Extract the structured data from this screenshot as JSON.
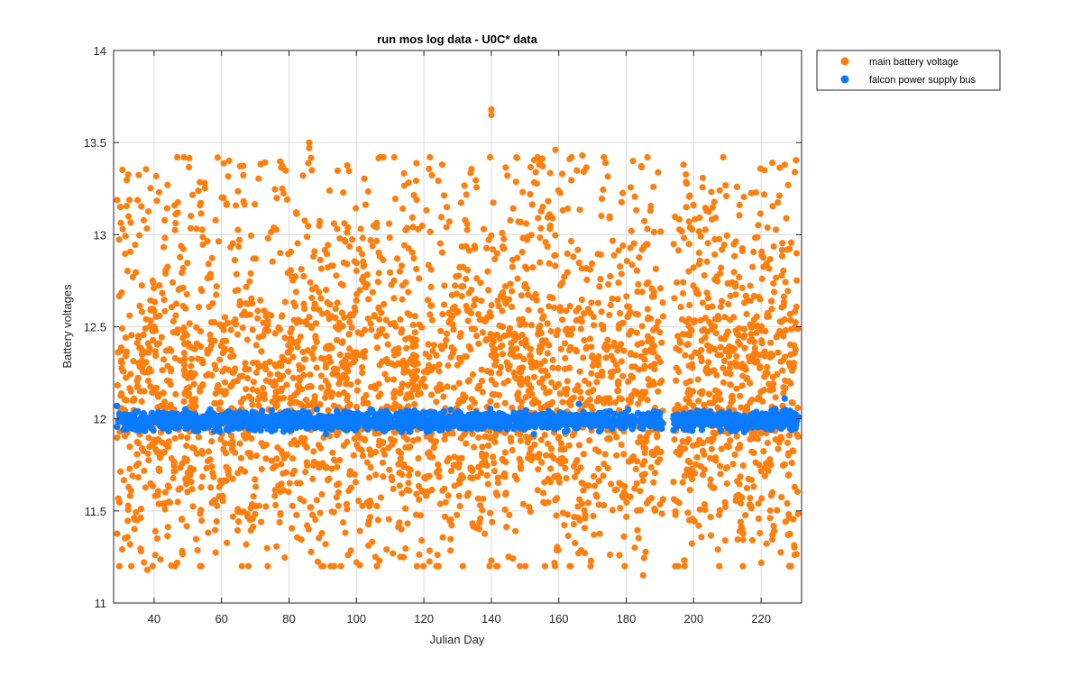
{
  "chart_data": {
    "type": "scatter",
    "title": "run mos log data - U0C* data",
    "xlabel": "Julian Day",
    "ylabel": "Battery voltages",
    "xlim": [
      28,
      232
    ],
    "ylim": [
      11,
      14
    ],
    "xticks": [
      40,
      60,
      80,
      100,
      120,
      140,
      160,
      180,
      200,
      220
    ],
    "yticks": [
      11,
      11.5,
      12,
      12.5,
      13,
      13.5,
      14
    ],
    "grid": true,
    "legend_position": "outside-top-right",
    "series": [
      {
        "name": "main battery voltage",
        "color": "#FF7F0E",
        "x_range": [
          29,
          231
        ],
        "gap_days": [
          [
            191,
            194
          ]
        ],
        "y_center": 12.15,
        "y_spread": 0.45,
        "highlights": [
          {
            "x": 140,
            "y": 13.68
          },
          {
            "x": 140,
            "y": 13.65
          },
          {
            "x": 86,
            "y": 13.5
          },
          {
            "x": 86,
            "y": 13.47
          },
          {
            "x": 159,
            "y": 13.46
          },
          {
            "x": 167,
            "y": 13.43
          },
          {
            "x": 108,
            "y": 13.42
          },
          {
            "x": 182,
            "y": 13.4
          },
          {
            "x": 197,
            "y": 13.38
          },
          {
            "x": 227,
            "y": 13.38
          },
          {
            "x": 230,
            "y": 13.34
          },
          {
            "x": 221,
            "y": 13.35
          },
          {
            "x": 30,
            "y": 13.15
          },
          {
            "x": 44,
            "y": 13.27
          },
          {
            "x": 55,
            "y": 13.28
          },
          {
            "x": 78,
            "y": 13.25
          },
          {
            "x": 38,
            "y": 11.18
          },
          {
            "x": 54,
            "y": 11.2
          },
          {
            "x": 37,
            "y": 11.22
          },
          {
            "x": 100,
            "y": 11.22
          },
          {
            "x": 140,
            "y": 11.23
          },
          {
            "x": 185,
            "y": 11.15
          },
          {
            "x": 113,
            "y": 11.25
          },
          {
            "x": 178,
            "y": 11.26
          },
          {
            "x": 228,
            "y": 11.37
          },
          {
            "x": 35,
            "y": 11.45
          }
        ]
      },
      {
        "name": "falcon power supply bus",
        "color": "#0A7BFF",
        "x_range": [
          29,
          231
        ],
        "gap_days": [
          [
            191,
            194
          ]
        ],
        "y_center": 11.99,
        "y_spread": 0.025,
        "highlights": [
          {
            "x": 227,
            "y": 12.11
          },
          {
            "x": 166,
            "y": 12.08
          },
          {
            "x": 29,
            "y": 12.07
          }
        ]
      }
    ]
  }
}
